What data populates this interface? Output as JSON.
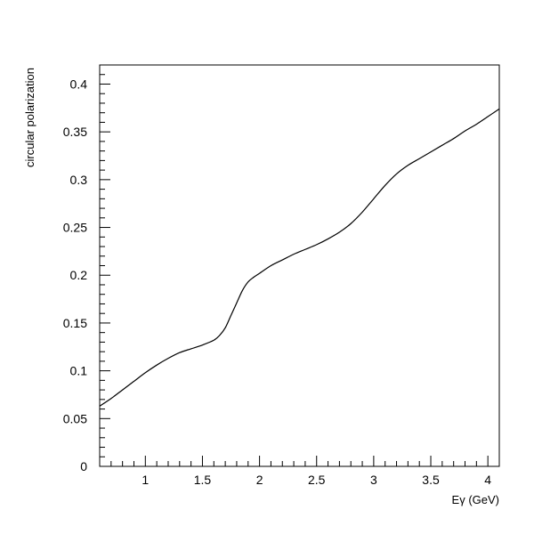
{
  "chart_data": {
    "type": "line",
    "title": "",
    "xlabel": "Eγ (GeV)",
    "ylabel": "circular polarization",
    "xlim": [
      0.6,
      4.1
    ],
    "ylim": [
      0,
      0.42
    ],
    "x_ticks": [
      1,
      1.5,
      2,
      2.5,
      3,
      3.5,
      4
    ],
    "x_tick_labels": [
      "1",
      "1.5",
      "2",
      "2.5",
      "3",
      "3.5",
      "4"
    ],
    "y_ticks": [
      0,
      0.05,
      0.1,
      0.15,
      0.2,
      0.25,
      0.3,
      0.35,
      0.4
    ],
    "y_tick_labels": [
      "0",
      "0.05",
      "0.1",
      "0.15",
      "0.2",
      "0.25",
      "0.3",
      "0.35",
      "0.4"
    ],
    "grid": false,
    "legend": "none",
    "series": [
      {
        "x": [
          0.6,
          0.7,
          0.8,
          0.9,
          1.0,
          1.1,
          1.2,
          1.3,
          1.4,
          1.5,
          1.6,
          1.65,
          1.7,
          1.75,
          1.8,
          1.85,
          1.9,
          1.95,
          2.0,
          2.1,
          2.2,
          2.3,
          2.4,
          2.5,
          2.6,
          2.7,
          2.8,
          2.9,
          3.0,
          3.1,
          3.2,
          3.3,
          3.4,
          3.5,
          3.6,
          3.7,
          3.8,
          3.9,
          4.0,
          4.1
        ],
        "y": [
          0.063,
          0.071,
          0.08,
          0.089,
          0.098,
          0.106,
          0.113,
          0.119,
          0.123,
          0.127,
          0.132,
          0.137,
          0.145,
          0.158,
          0.171,
          0.184,
          0.193,
          0.198,
          0.202,
          0.21,
          0.216,
          0.222,
          0.227,
          0.232,
          0.238,
          0.245,
          0.254,
          0.266,
          0.28,
          0.294,
          0.306,
          0.315,
          0.322,
          0.329,
          0.336,
          0.343,
          0.351,
          0.358,
          0.366,
          0.374
        ]
      }
    ]
  }
}
